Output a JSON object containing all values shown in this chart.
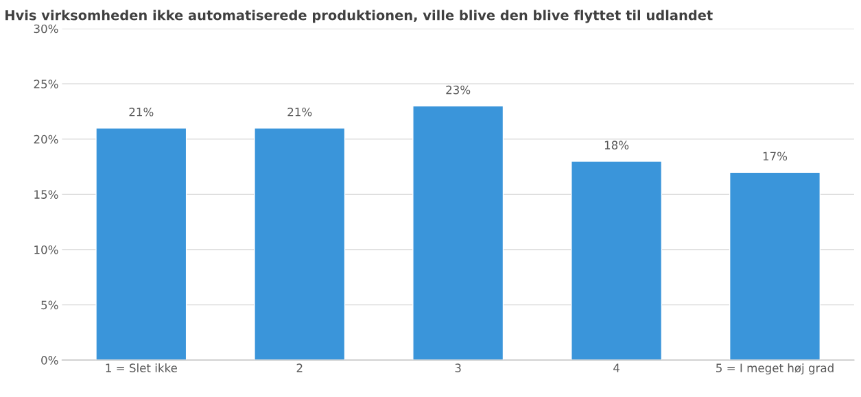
{
  "chart_data": {
    "type": "bar",
    "title": "Hvis virksomheden ikke automatiserede produktionen, ville blive den blive flyttet til udlandet",
    "categories": [
      "1 = Slet ikke",
      "2",
      "3",
      "4",
      "5 = I meget høj grad"
    ],
    "values": [
      21,
      21,
      23,
      18,
      17
    ],
    "color": "#3a95da",
    "value_labels": [
      "21%",
      "21%",
      "23%",
      "18%",
      "17%"
    ],
    "ylim": [
      0,
      30
    ],
    "yticks": [
      {
        "value": 0,
        "label": "0%"
      },
      {
        "value": 5,
        "label": "5%"
      },
      {
        "value": 10,
        "label": "10%"
      },
      {
        "value": 15,
        "label": "15%"
      },
      {
        "value": 20,
        "label": "20%"
      },
      {
        "value": 25,
        "label": "25%"
      },
      {
        "value": 30,
        "label": "30%"
      }
    ],
    "grid": "y",
    "legend": false
  }
}
